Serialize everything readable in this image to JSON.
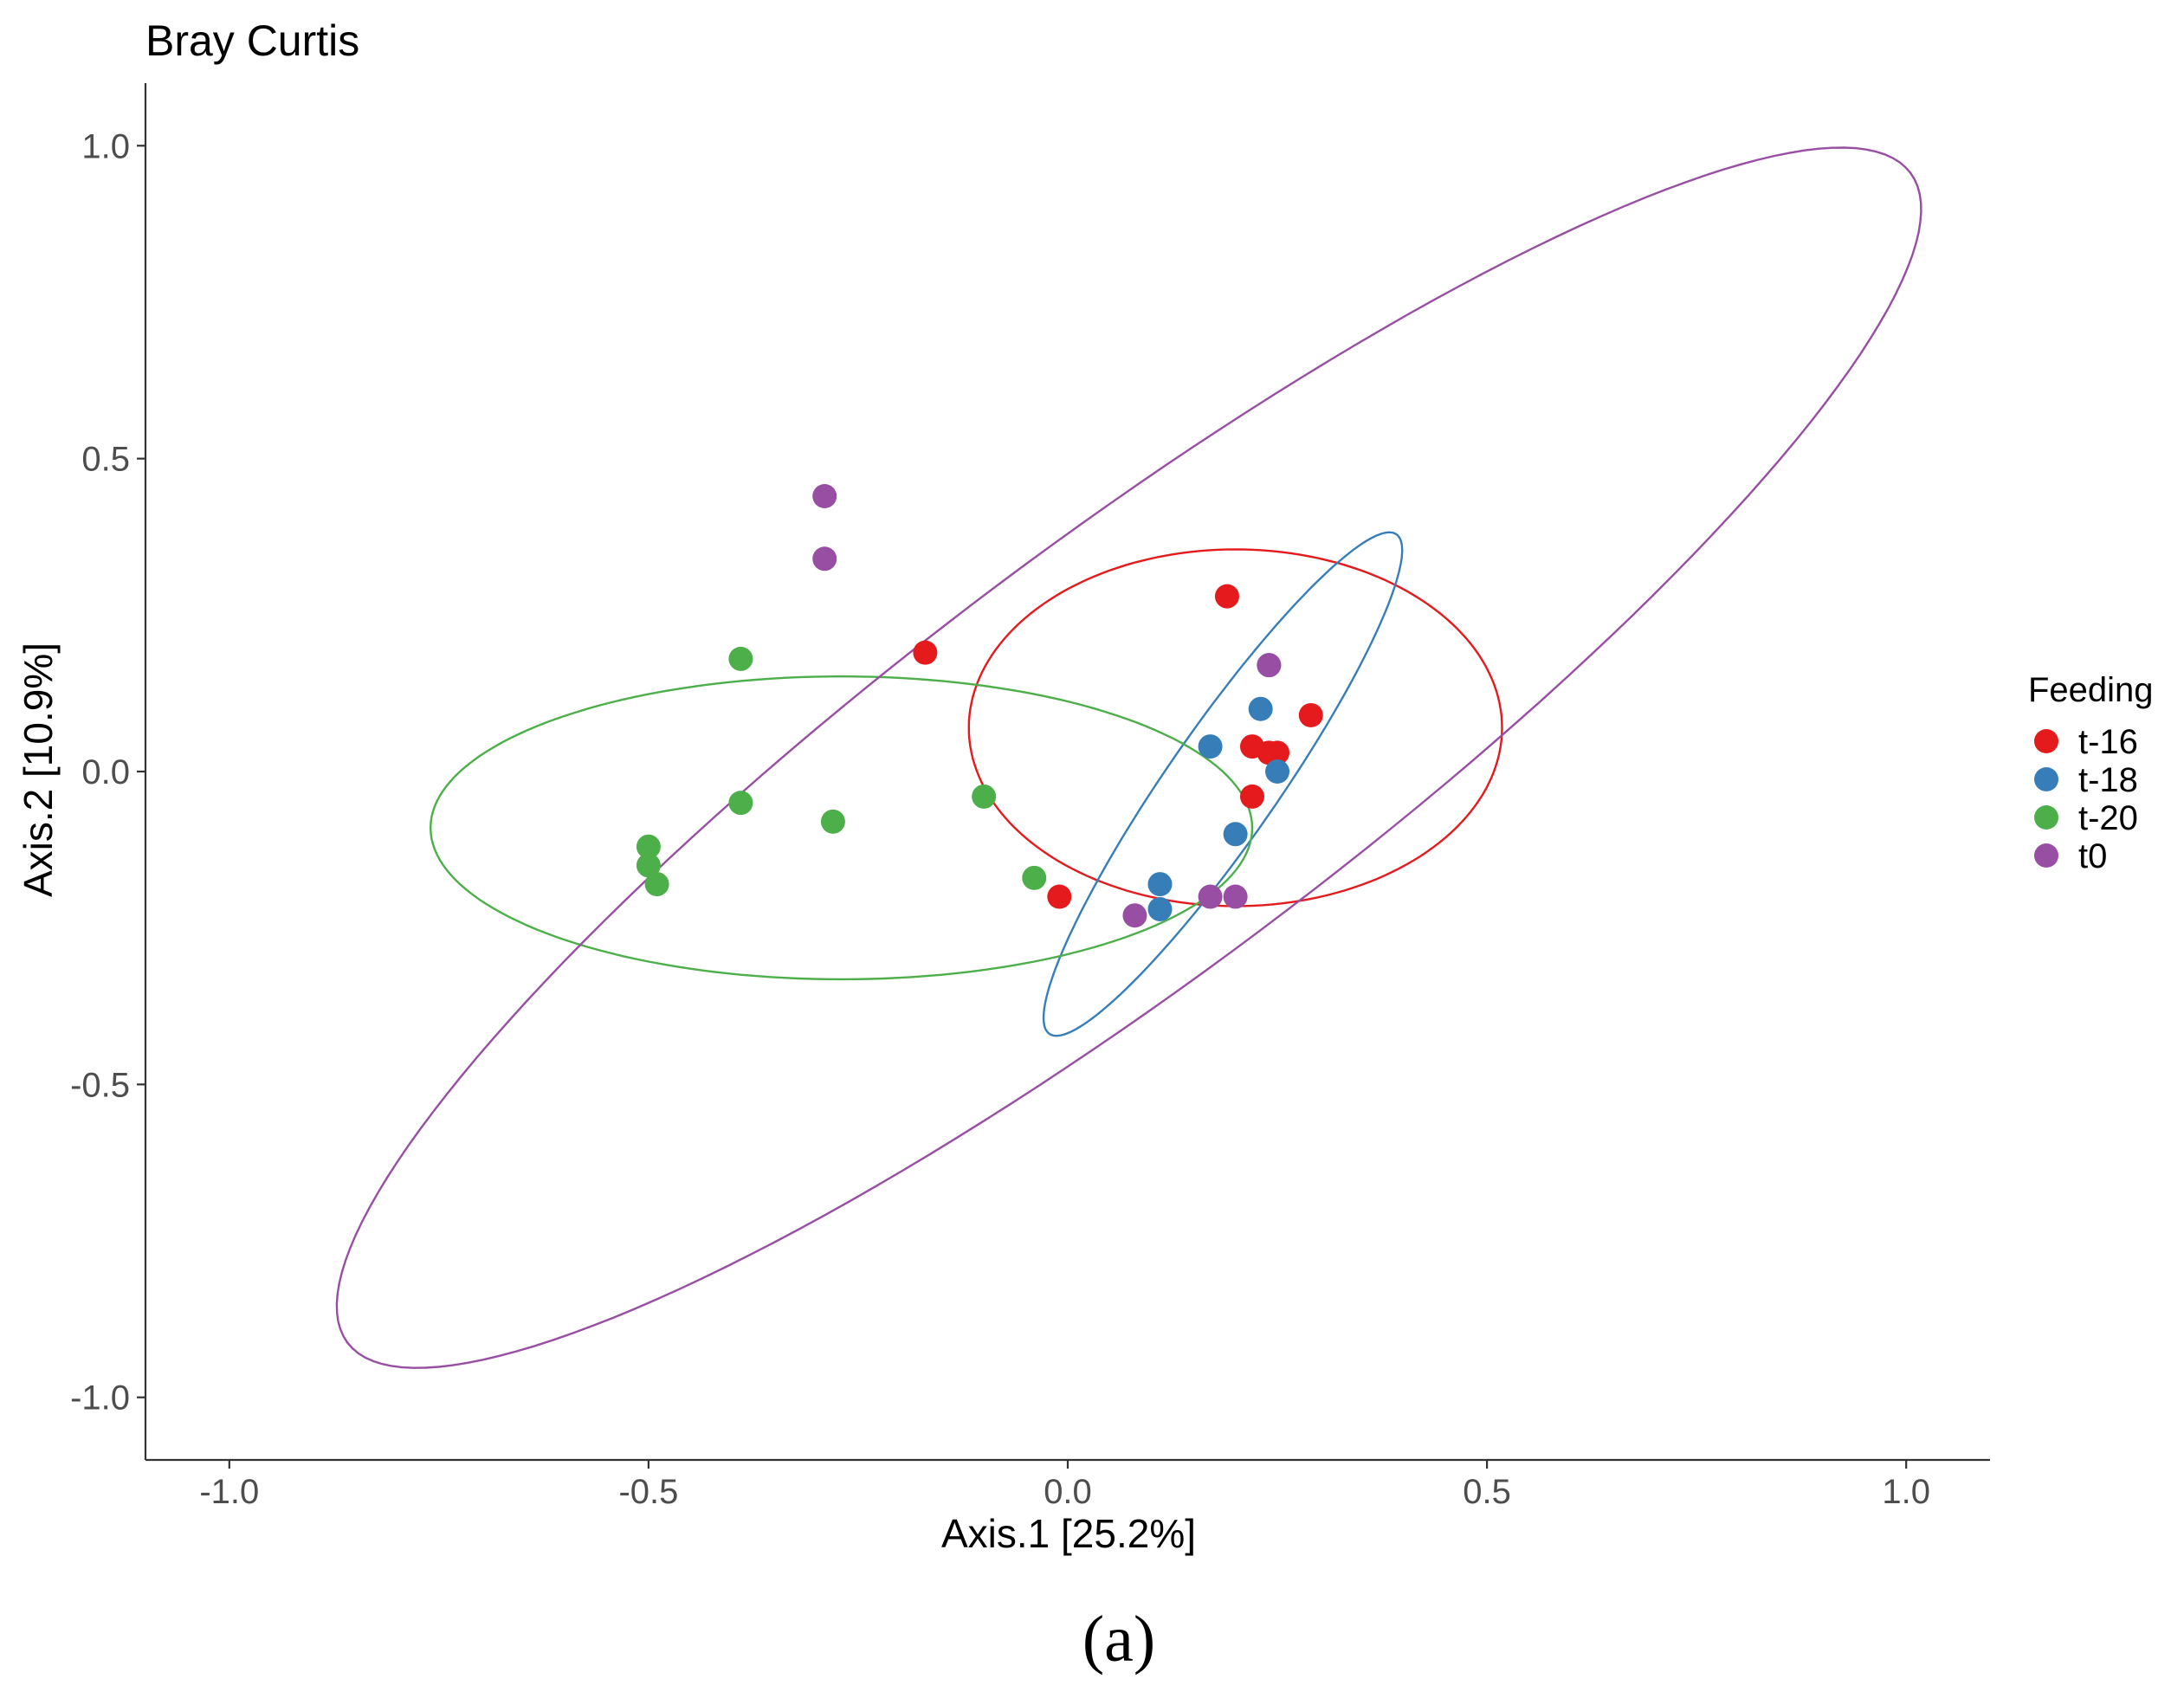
{
  "chart_data": {
    "type": "scatter",
    "title": "Bray Curtis",
    "xlabel": "Axis.1   [25.2%]",
    "ylabel": "Axis.2   [10.9%]",
    "xlim": [
      -1.1,
      1.1
    ],
    "ylim": [
      -1.1,
      1.1
    ],
    "xticks": [
      -1.0,
      -0.5,
      0.0,
      0.5,
      1.0
    ],
    "yticks": [
      -1.0,
      -0.5,
      0.0,
      0.5,
      1.0
    ],
    "xtick_labels": [
      "-1.0",
      "-0.5",
      "0.0",
      "0.5",
      "1.0"
    ],
    "ytick_labels": [
      "-1.0",
      "-0.5",
      "0.0",
      "0.5",
      "1.0"
    ],
    "grid": false,
    "legend": {
      "title": "Feeding",
      "placement": "right"
    },
    "series": [
      {
        "name": "t-16",
        "color": "#e41a1c",
        "points": [
          [
            0.19,
            0.28
          ],
          [
            -0.17,
            0.19
          ],
          [
            0.29,
            0.09
          ],
          [
            0.22,
            0.04
          ],
          [
            0.24,
            0.03
          ],
          [
            0.25,
            0.03
          ],
          [
            0.22,
            -0.04
          ],
          [
            -0.01,
            -0.2
          ]
        ],
        "ellipse": {
          "cx": 0.2,
          "cy": 0.07,
          "rx": 0.318,
          "ry": 0.285,
          "rotation_deg": 0
        }
      },
      {
        "name": "t-18",
        "color": "#377eb8",
        "points": [
          [
            0.24,
            0.17
          ],
          [
            0.23,
            0.1
          ],
          [
            0.17,
            0.04
          ],
          [
            0.25,
            0.0
          ],
          [
            0.2,
            -0.1
          ],
          [
            0.11,
            -0.18
          ],
          [
            0.11,
            -0.22
          ]
        ],
        "ellipse": {
          "cx": 0.185,
          "cy": -0.02,
          "rx": 0.45,
          "ry": 0.071,
          "rotation_deg": 63
        }
      },
      {
        "name": "t-20",
        "color": "#4daf4a",
        "points": [
          [
            -0.39,
            0.18
          ],
          [
            -0.39,
            -0.05
          ],
          [
            -0.28,
            -0.08
          ],
          [
            -0.1,
            -0.04
          ],
          [
            -0.04,
            -0.17
          ],
          [
            -0.5,
            -0.12
          ],
          [
            -0.5,
            -0.15
          ],
          [
            -0.49,
            -0.18
          ]
        ],
        "ellipse": {
          "cx": -0.27,
          "cy": -0.09,
          "rx": 0.49,
          "ry": 0.242,
          "rotation_deg": 0
        }
      },
      {
        "name": "t0",
        "color": "#984ea3",
        "points": [
          [
            -0.29,
            0.44
          ],
          [
            -0.29,
            0.34
          ],
          [
            0.24,
            0.17
          ],
          [
            0.17,
            -0.2
          ],
          [
            0.2,
            -0.2
          ],
          [
            0.08,
            -0.23
          ]
        ],
        "ellipse": {
          "cx": 0.073,
          "cy": 0.022,
          "rx": 1.323,
          "ry": 0.305,
          "rotation_deg": 46
        }
      }
    ]
  },
  "caption": "(a)"
}
